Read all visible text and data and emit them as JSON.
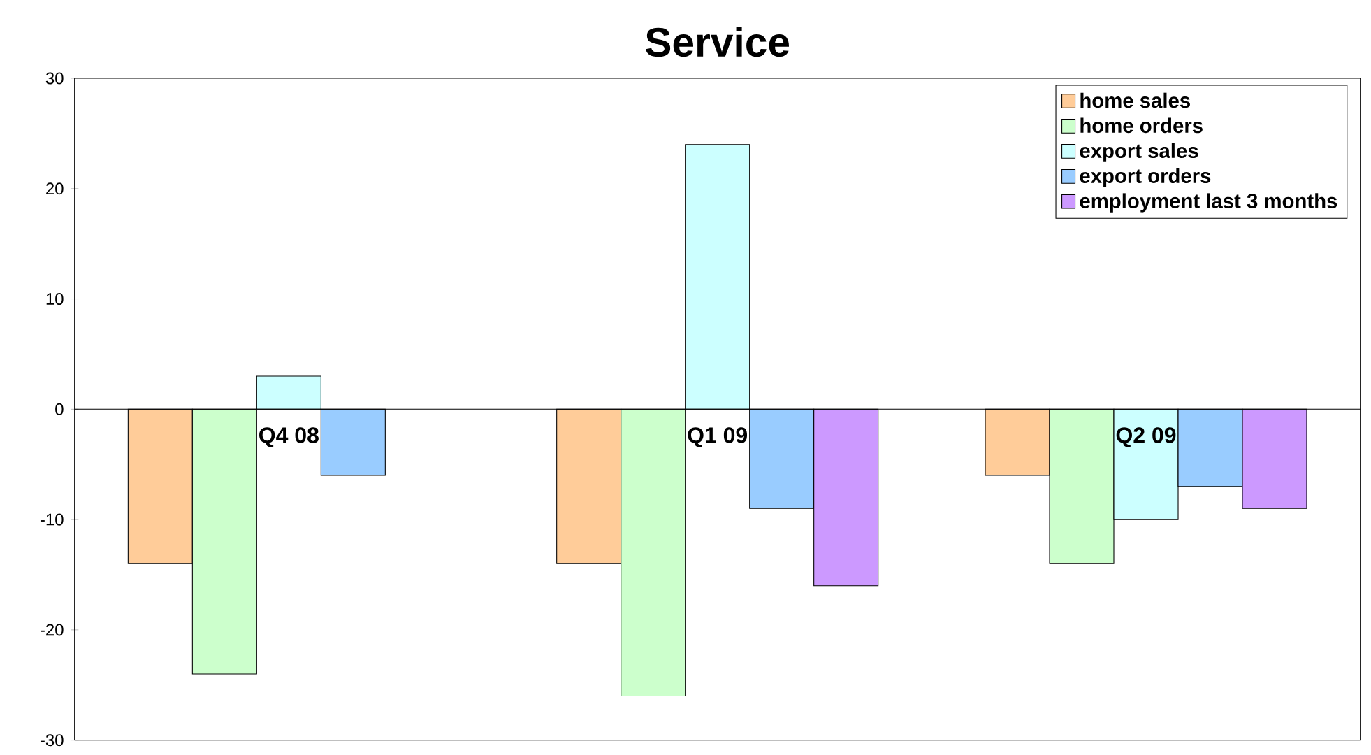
{
  "chart_data": {
    "type": "bar",
    "title": "Service",
    "categories": [
      "Q4 08",
      "Q1 09",
      "Q2 09"
    ],
    "series": [
      {
        "name": "home sales",
        "color": "#ffcc99",
        "values": [
          -14,
          -14,
          -6
        ]
      },
      {
        "name": "home orders",
        "color": "#ccffcc",
        "values": [
          -24,
          -26,
          -14
        ]
      },
      {
        "name": "export sales",
        "color": "#ccffff",
        "values": [
          3,
          24,
          -10
        ]
      },
      {
        "name": "export orders",
        "color": "#99ccff",
        "values": [
          -6,
          -9,
          -7
        ]
      },
      {
        "name": "employment last 3 months",
        "color": "#cc99ff",
        "values": [
          null,
          -16,
          -9
        ]
      }
    ],
    "ylim": [
      -30,
      30
    ],
    "yticks": [
      -30,
      -20,
      -10,
      0,
      10,
      20,
      30
    ],
    "grid": false,
    "legend": "top right"
  }
}
